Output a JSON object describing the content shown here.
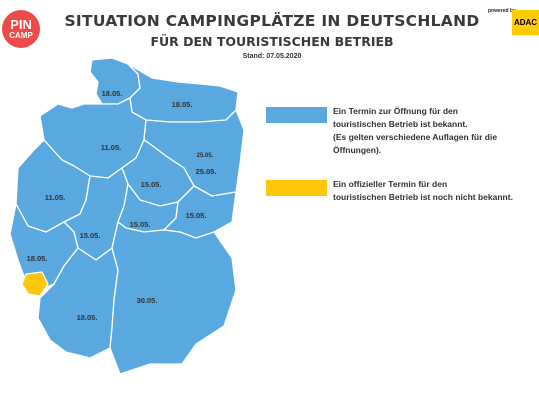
{
  "header": {
    "logo_line1": "PIN",
    "logo_line2": "CAMP",
    "title": "SITUATION CAMPINGPLÄTZE IN DEUTSCHLAND",
    "subtitle": "FÜR DEN TOURISTISCHEN BETRIEB",
    "stand": "Stand: 07.05.2020",
    "powered_by": "powered by",
    "adac": "ADAC"
  },
  "colors": {
    "open_known": "#5aa8e0",
    "not_known": "#ffc60a",
    "border": "#ffffff",
    "label": "#333333"
  },
  "regions": [
    {
      "name": "Schleswig-Holstein",
      "label": "18.05.",
      "status": "open_known"
    },
    {
      "name": "Hamburg",
      "label": "",
      "status": "not_known"
    },
    {
      "name": "Bremen",
      "label": "",
      "status": "not_known"
    },
    {
      "name": "Mecklenburg-Vorpommern",
      "label": "18.05.",
      "status": "open_known"
    },
    {
      "name": "Niedersachsen",
      "label": "11.05.",
      "status": "open_known"
    },
    {
      "name": "Berlin",
      "label": "25.05.",
      "status": "open_known"
    },
    {
      "name": "Brandenburg",
      "label": "25.05.",
      "status": "open_known"
    },
    {
      "name": "Sachsen-Anhalt",
      "label": "15.05.",
      "status": "open_known"
    },
    {
      "name": "Nordrhein-Westfalen",
      "label": "11.05.",
      "status": "open_known"
    },
    {
      "name": "Hessen",
      "label": "15.05.",
      "status": "open_known"
    },
    {
      "name": "Thüringen",
      "label": "15.05.",
      "status": "open_known"
    },
    {
      "name": "Sachsen",
      "label": "15.05.",
      "status": "open_known"
    },
    {
      "name": "Rheinland-Pfalz",
      "label": "18.05.",
      "status": "open_known"
    },
    {
      "name": "Saarland",
      "label": "",
      "status": "not_known"
    },
    {
      "name": "Baden-Württemberg",
      "label": "18.05.",
      "status": "open_known"
    },
    {
      "name": "Bayern",
      "label": "30.05.",
      "status": "open_known"
    }
  ],
  "legend": [
    {
      "status": "open_known",
      "text": "Ein Termin zur Öffnung für den\ntouristischen Betrieb ist bekannt.\n(Es gelten verschiedene Auflagen für die\nÖffnungen)."
    },
    {
      "status": "not_known",
      "text": "Ein offizieller Termin für den\ntouristischen Betrieb ist noch nicht bekannt."
    }
  ]
}
